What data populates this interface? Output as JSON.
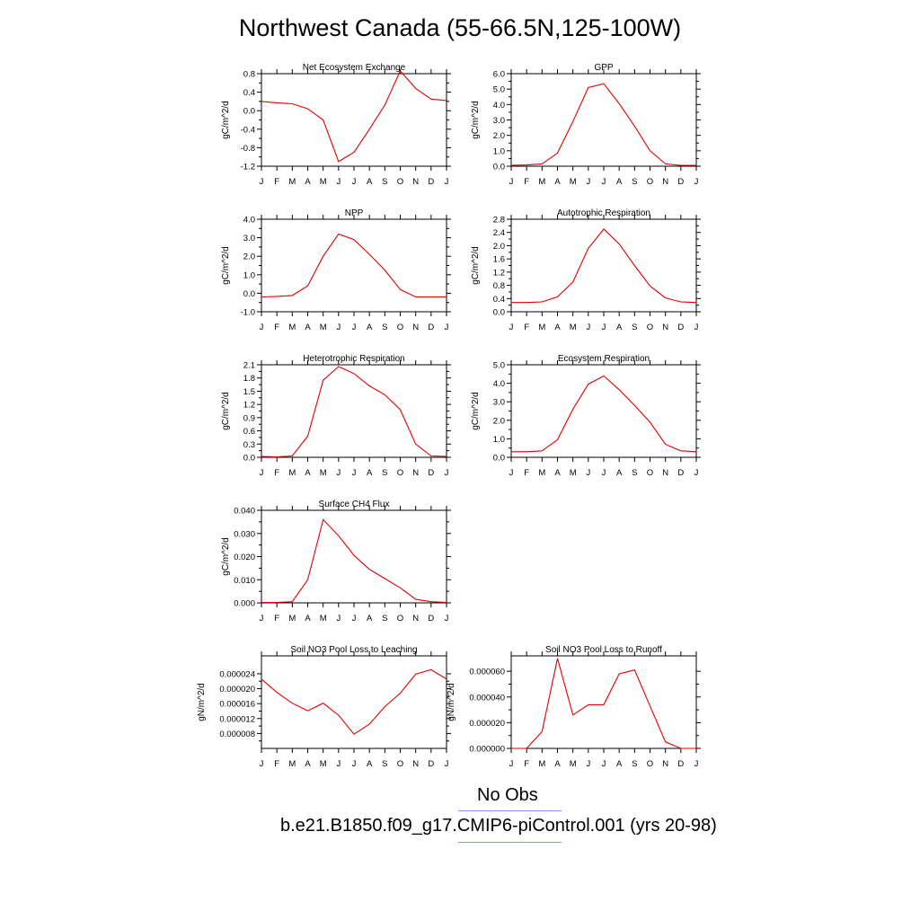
{
  "title": "Northwest Canada (55-66.5N,125-100W)",
  "months": [
    "J",
    "F",
    "M",
    "A",
    "M",
    "J",
    "J",
    "A",
    "S",
    "O",
    "N",
    "D",
    "J"
  ],
  "legend": [
    {
      "label": "No Obs",
      "color": "#8a8af0"
    },
    {
      "label": "b.e21.B1850.f09_g17.CMIP6-piControl.001 (yrs 20-98)",
      "color": "#f07a7a"
    }
  ],
  "line_color": "#e00000",
  "chart_data": [
    {
      "type": "line",
      "title": "Net Ecosystem Exchange",
      "ylabel": "gC/m^2/d",
      "ylim": [
        -1.2,
        0.8
      ],
      "yticks": [
        "0.8",
        "0.4",
        "0.0",
        "-0.4",
        "-0.8",
        "-1.2"
      ],
      "ytick_values": [
        0.8,
        0.4,
        0.0,
        -0.4,
        -0.8,
        -1.2
      ],
      "values": [
        0.2,
        0.17,
        0.15,
        0.04,
        -0.2,
        -1.1,
        -0.9,
        -0.4,
        0.12,
        0.86,
        0.48,
        0.25,
        0.22
      ]
    },
    {
      "type": "line",
      "title": "GPP",
      "ylabel": "gC/m^2/d",
      "ylim": [
        0,
        6
      ],
      "yticks": [
        "6.0",
        "5.0",
        "4.0",
        "3.0",
        "2.0",
        "1.0",
        "0.0"
      ],
      "ytick_values": [
        6,
        5,
        4,
        3,
        2,
        1,
        0
      ],
      "values": [
        0.05,
        0.08,
        0.15,
        0.85,
        2.9,
        5.1,
        5.35,
        4.05,
        2.6,
        1.0,
        0.15,
        0.05,
        0.05
      ]
    },
    {
      "type": "line",
      "title": "NPP",
      "ylabel": "gC/m^2/d",
      "ylim": [
        -1,
        4
      ],
      "yticks": [
        "4.0",
        "3.0",
        "2.0",
        "1.0",
        "0.0",
        "-1.0"
      ],
      "ytick_values": [
        4,
        3,
        2,
        1,
        0,
        -1
      ],
      "values": [
        -0.2,
        -0.17,
        -0.12,
        0.4,
        2.0,
        3.2,
        2.9,
        2.1,
        1.25,
        0.2,
        -0.2,
        -0.2,
        -0.2
      ]
    },
    {
      "type": "line",
      "title": "Autotrophic Respiration",
      "ylabel": "gC/m^2/d",
      "ylim": [
        0,
        2.8
      ],
      "yticks": [
        "2.8",
        "2.4",
        "2.0",
        "1.6",
        "1.2",
        "0.8",
        "0.4",
        "0.0"
      ],
      "ytick_values": [
        2.8,
        2.4,
        2.0,
        1.6,
        1.2,
        0.8,
        0.4,
        0.0
      ],
      "values": [
        0.28,
        0.28,
        0.3,
        0.45,
        0.9,
        1.92,
        2.5,
        2.05,
        1.4,
        0.78,
        0.42,
        0.3,
        0.28
      ]
    },
    {
      "type": "line",
      "title": "Heterotrophic Respiration",
      "ylabel": "gC/m^2/d",
      "ylim": [
        0,
        2.1
      ],
      "yticks": [
        "2.1",
        "1.8",
        "1.5",
        "1.2",
        "0.9",
        "0.6",
        "0.3",
        "0.0"
      ],
      "ytick_values": [
        2.1,
        1.8,
        1.5,
        1.2,
        0.9,
        0.6,
        0.3,
        0.0
      ],
      "values": [
        0.02,
        0.01,
        0.03,
        0.48,
        1.75,
        2.06,
        1.9,
        1.62,
        1.42,
        1.08,
        0.3,
        0.03,
        0.02
      ]
    },
    {
      "type": "line",
      "title": "Ecosystem Respiration",
      "ylabel": "gC/m^2/d",
      "ylim": [
        0,
        5
      ],
      "yticks": [
        "5.0",
        "4.0",
        "3.0",
        "2.0",
        "1.0",
        "0.0"
      ],
      "ytick_values": [
        5,
        4,
        3,
        2,
        1,
        0
      ],
      "values": [
        0.3,
        0.3,
        0.35,
        0.95,
        2.6,
        3.95,
        4.4,
        3.65,
        2.8,
        1.9,
        0.7,
        0.35,
        0.3
      ]
    },
    {
      "type": "line",
      "title": "Surface CH4 Flux",
      "ylabel": "gC/m^2/d",
      "ylim": [
        0,
        0.04
      ],
      "yticks": [
        "0.040",
        "0.030",
        "0.020",
        "0.010",
        "0.000"
      ],
      "ytick_values": [
        0.04,
        0.03,
        0.02,
        0.01,
        0.0
      ],
      "values": [
        0.0002,
        0.0002,
        0.0005,
        0.01,
        0.036,
        0.029,
        0.0205,
        0.0145,
        0.0105,
        0.0065,
        0.0015,
        0.0005,
        0.0002
      ]
    },
    {
      "type": "line",
      "title": "Soil NO3 Pool Loss to Leaching",
      "ylabel": "gN/m^2/d",
      "ylim": [
        4e-06,
        2.88e-05
      ],
      "yticks": [
        "0.000024",
        "0.000020",
        "0.000016",
        "0.000012",
        "0.000008"
      ],
      "ytick_values": [
        2.4e-05,
        2e-05,
        1.6e-05,
        1.2e-05,
        8e-06
      ],
      "values": [
        2.26e-05,
        1.9e-05,
        1.61e-05,
        1.41e-05,
        1.61e-05,
        1.29e-05,
        7.8e-06,
        1.05e-05,
        1.52e-05,
        1.88e-05,
        2.39e-05,
        2.51e-05,
        2.26e-05
      ]
    },
    {
      "type": "line",
      "title": "Soil NO3 Pool Loss to Runoff",
      "ylabel": "gN/m^2/d",
      "ylim": [
        0,
        7.2e-05
      ],
      "yticks": [
        "0.000060",
        "0.000040",
        "0.000020",
        "0.000000"
      ],
      "ytick_values": [
        6e-05,
        4e-05,
        2e-05,
        0.0
      ],
      "values": [
        0.0,
        0.0,
        1.3e-05,
        7e-05,
        2.6e-05,
        3.4e-05,
        3.4e-05,
        5.8e-05,
        6.1e-05,
        3.3e-05,
        5e-06,
        0.0,
        0.0
      ]
    }
  ]
}
